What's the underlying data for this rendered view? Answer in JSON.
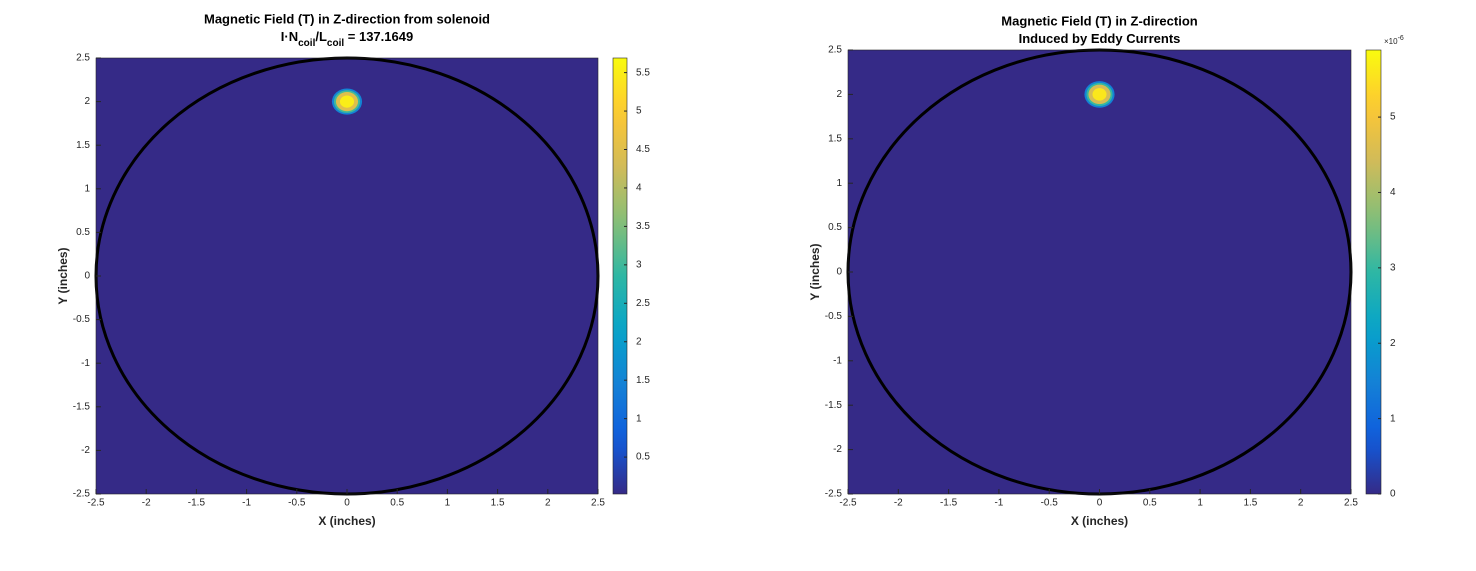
{
  "chart_data": [
    {
      "type": "heatmap",
      "title": "Magnetic Field (T) in Z-direction from solenoid",
      "subtitle": [
        {
          "text": "I·N"
        },
        {
          "text": "coil",
          "sub": true
        },
        {
          "text": "/L"
        },
        {
          "text": "coil",
          "sub": true
        },
        {
          "text": " = 137.1649"
        }
      ],
      "xlabel": "X (inches)",
      "ylabel": "Y (inches)",
      "xlim": [
        -2.5,
        2.5
      ],
      "xticks": [
        -2.5,
        -2,
        -1.5,
        -1,
        -0.5,
        0,
        0.5,
        1,
        1.5,
        2,
        2.5
      ],
      "ylim": [
        -2.5,
        2.5
      ],
      "yticks": [
        -2.5,
        -2,
        -1.5,
        -1,
        -0.5,
        0,
        0.5,
        1,
        1.5,
        2,
        2.5
      ],
      "colormap": "parula",
      "clim": [
        0.02,
        5.69
      ],
      "cticks": [
        0.5,
        1,
        1.5,
        2,
        2.5,
        3,
        3.5,
        4,
        4.5,
        5,
        5.5
      ],
      "background": 0.02,
      "contours": [
        {
          "x": 0,
          "y": 2,
          "r": 0.15,
          "value": 1.5
        },
        {
          "x": 0,
          "y": 2,
          "r": 0.13,
          "value": 3
        },
        {
          "x": 0,
          "y": 2,
          "r": 0.11,
          "value": 4.5
        },
        {
          "x": 0,
          "y": 2,
          "r": 0.07,
          "value": 5.5
        }
      ],
      "outline": {
        "x": 0,
        "y": 0,
        "r": 2.5,
        "color": "#000000"
      }
    },
    {
      "type": "heatmap",
      "title": "Magnetic Field (T) in Z-direction",
      "subtitle": [
        {
          "text": "Induced by Eddy Currents"
        }
      ],
      "xlabel": "X (inches)",
      "ylabel": "Y (inches)",
      "xlim": [
        -2.5,
        2.5
      ],
      "xticks": [
        -2.5,
        -2,
        -1.5,
        -1,
        -0.5,
        0,
        0.5,
        1,
        1.5,
        2,
        2.5
      ],
      "ylim": [
        -2.5,
        2.5
      ],
      "yticks": [
        -2.5,
        -2,
        -1.5,
        -1,
        -0.5,
        0,
        0.5,
        1,
        1.5,
        2,
        2.5
      ],
      "colormap": "parula",
      "clim": [
        0,
        5.89e-06
      ],
      "cticks": [
        {
          "value": 0,
          "label": "0"
        },
        {
          "value": 1e-06,
          "label": "1"
        },
        {
          "value": 2e-06,
          "label": "2"
        },
        {
          "value": 3e-06,
          "label": "3"
        },
        {
          "value": 4e-06,
          "label": "4"
        },
        {
          "value": 5e-06,
          "label": "5"
        }
      ],
      "cexponent": [
        {
          "text": "×10"
        },
        {
          "text": "-6",
          "sup": true
        }
      ],
      "background": 0,
      "contours": [
        {
          "x": 0,
          "y": 2,
          "r": 0.15,
          "value": 1.5e-06
        },
        {
          "x": 0,
          "y": 2,
          "r": 0.13,
          "value": 3e-06
        },
        {
          "x": 0,
          "y": 2,
          "r": 0.11,
          "value": 4.5e-06
        },
        {
          "x": 0,
          "y": 2,
          "r": 0.07,
          "value": 5.6e-06
        }
      ],
      "outline": {
        "x": 0,
        "y": 0,
        "r": 2.5,
        "color": "#000000"
      }
    }
  ]
}
